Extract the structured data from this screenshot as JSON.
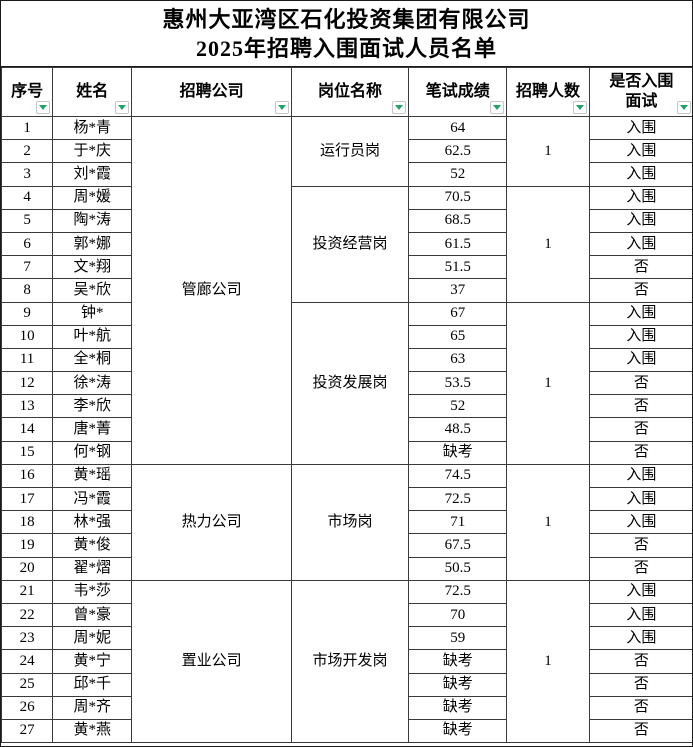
{
  "title": {
    "line1": "惠州大亚湾区石化投资集团有限公司",
    "line2": "2025年招聘入围面试人员名单"
  },
  "colors": {
    "filter_arrow_green": "#21a366",
    "grid_border": "#3a3a3a",
    "text": "#000000",
    "background": "#ffffff"
  },
  "columns": [
    {
      "key": "serial-number",
      "lines": [
        "序号"
      ],
      "filter_icon": "triangle-down-icon"
    },
    {
      "key": "name",
      "lines": [
        "姓名"
      ],
      "filter_icon": "triangle-down-icon"
    },
    {
      "key": "company",
      "lines": [
        "招聘公司"
      ],
      "filter_icon": "triangle-down-icon"
    },
    {
      "key": "position",
      "lines": [
        "岗位名称"
      ],
      "filter_icon": "triangle-down-icon"
    },
    {
      "key": "score",
      "lines": [
        "笔试成绩"
      ],
      "filter_icon": "triangle-down-icon"
    },
    {
      "key": "recruit-count",
      "lines": [
        "招聘人数"
      ],
      "filter_icon": "triangle-down-icon"
    },
    {
      "key": "shortlist",
      "lines": [
        "是否入围",
        "面试"
      ],
      "filter_icon": "triangle-down-icon"
    }
  ],
  "companies": [
    {
      "name": "管廊公司",
      "positions": [
        {
          "name": "运行员岗",
          "recruit_count": "1",
          "candidates": [
            {
              "no": "1",
              "name": "杨*青",
              "score": "64",
              "shortlisted": "入围"
            },
            {
              "no": "2",
              "name": "于*庆",
              "score": "62.5",
              "shortlisted": "入围"
            },
            {
              "no": "3",
              "name": "刘*霞",
              "score": "52",
              "shortlisted": "入围"
            }
          ]
        },
        {
          "name": "投资经营岗",
          "recruit_count": "1",
          "candidates": [
            {
              "no": "4",
              "name": "周*媛",
              "score": "70.5",
              "shortlisted": "入围"
            },
            {
              "no": "5",
              "name": "陶*涛",
              "score": "68.5",
              "shortlisted": "入围"
            },
            {
              "no": "6",
              "name": "郭*娜",
              "score": "61.5",
              "shortlisted": "入围"
            },
            {
              "no": "7",
              "name": "文*翔",
              "score": "51.5",
              "shortlisted": "否"
            },
            {
              "no": "8",
              "name": "吴*欣",
              "score": "37",
              "shortlisted": "否"
            }
          ]
        },
        {
          "name": "投资发展岗",
          "recruit_count": "1",
          "candidates": [
            {
              "no": "9",
              "name": "钟*",
              "score": "67",
              "shortlisted": "入围"
            },
            {
              "no": "10",
              "name": "叶*航",
              "score": "65",
              "shortlisted": "入围"
            },
            {
              "no": "11",
              "name": "全*桐",
              "score": "63",
              "shortlisted": "入围"
            },
            {
              "no": "12",
              "name": "徐*涛",
              "score": "53.5",
              "shortlisted": "否"
            },
            {
              "no": "13",
              "name": "李*欣",
              "score": "52",
              "shortlisted": "否"
            },
            {
              "no": "14",
              "name": "唐*菁",
              "score": "48.5",
              "shortlisted": "否"
            },
            {
              "no": "15",
              "name": "何*钢",
              "score": "缺考",
              "shortlisted": "否"
            }
          ]
        }
      ]
    },
    {
      "name": "热力公司",
      "positions": [
        {
          "name": "市场岗",
          "recruit_count": "1",
          "candidates": [
            {
              "no": "16",
              "name": "黄*瑶",
              "score": "74.5",
              "shortlisted": "入围"
            },
            {
              "no": "17",
              "name": "冯*霞",
              "score": "72.5",
              "shortlisted": "入围"
            },
            {
              "no": "18",
              "name": "林*强",
              "score": "71",
              "shortlisted": "入围"
            },
            {
              "no": "19",
              "name": "黄*俊",
              "score": "67.5",
              "shortlisted": "否"
            },
            {
              "no": "20",
              "name": "翟*熠",
              "score": "50.5",
              "shortlisted": "否"
            }
          ]
        }
      ]
    },
    {
      "name": "置业公司",
      "positions": [
        {
          "name": "市场开发岗",
          "recruit_count": "1",
          "candidates": [
            {
              "no": "21",
              "name": "韦*莎",
              "score": "72.5",
              "shortlisted": "入围"
            },
            {
              "no": "22",
              "name": "曾*豪",
              "score": "70",
              "shortlisted": "入围"
            },
            {
              "no": "23",
              "name": "周*妮",
              "score": "59",
              "shortlisted": "入围"
            },
            {
              "no": "24",
              "name": "黄*宁",
              "score": "缺考",
              "shortlisted": "否"
            },
            {
              "no": "25",
              "name": "邱*千",
              "score": "缺考",
              "shortlisted": "否"
            },
            {
              "no": "26",
              "name": "周*齐",
              "score": "缺考",
              "shortlisted": "否"
            },
            {
              "no": "27",
              "name": "黄*燕",
              "score": "缺考",
              "shortlisted": "否"
            }
          ]
        }
      ]
    }
  ]
}
